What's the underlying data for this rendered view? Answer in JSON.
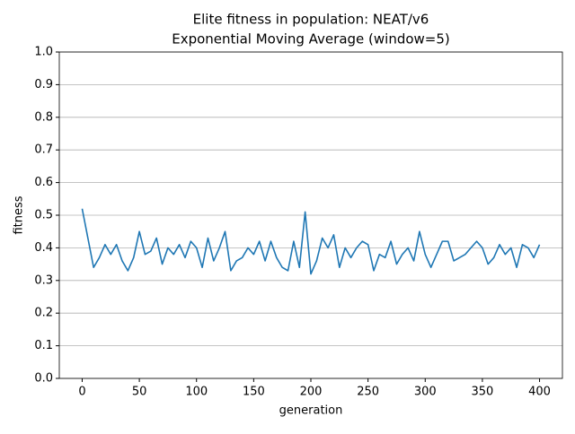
{
  "chart_data": {
    "type": "line",
    "title": "Elite fitness in population: NEAT/v6",
    "subtitle": "Exponential Moving Average (window=5)",
    "x_label": "generation",
    "y_label": "fitness",
    "x": [
      0,
      5,
      10,
      15,
      20,
      25,
      30,
      35,
      40,
      45,
      50,
      55,
      60,
      65,
      70,
      75,
      80,
      85,
      90,
      95,
      100,
      105,
      110,
      115,
      120,
      125,
      130,
      135,
      140,
      145,
      150,
      155,
      160,
      165,
      170,
      175,
      180,
      185,
      190,
      195,
      200,
      205,
      210,
      215,
      220,
      225,
      230,
      235,
      240,
      245,
      250,
      255,
      260,
      265,
      270,
      275,
      280,
      285,
      290,
      295,
      300,
      305,
      310,
      315,
      320,
      325,
      330,
      335,
      340,
      345,
      350,
      355,
      360,
      365,
      370,
      375,
      380,
      385,
      390,
      395,
      400
    ],
    "series": [
      {
        "color": "#1f77b4",
        "values": [
          0.52,
          0.43,
          0.34,
          0.37,
          0.41,
          0.38,
          0.41,
          0.36,
          0.33,
          0.37,
          0.45,
          0.38,
          0.39,
          0.43,
          0.35,
          0.4,
          0.38,
          0.41,
          0.37,
          0.42,
          0.4,
          0.34,
          0.43,
          0.36,
          0.4,
          0.45,
          0.33,
          0.36,
          0.37,
          0.4,
          0.38,
          0.42,
          0.36,
          0.42,
          0.37,
          0.34,
          0.33,
          0.42,
          0.34,
          0.51,
          0.32,
          0.36,
          0.43,
          0.4,
          0.44,
          0.34,
          0.4,
          0.37,
          0.4,
          0.42,
          0.41,
          0.33,
          0.38,
          0.37,
          0.42,
          0.35,
          0.38,
          0.4,
          0.36,
          0.45,
          0.38,
          0.34,
          0.38,
          0.42,
          0.42,
          0.36,
          0.37,
          0.38,
          0.4,
          0.42,
          0.4,
          0.35,
          0.37,
          0.41,
          0.38,
          0.4,
          0.34,
          0.41,
          0.4,
          0.37,
          0.41
        ]
      }
    ],
    "xlim": [
      -20,
      420
    ],
    "ylim": [
      0,
      1
    ],
    "xticks": [
      0,
      50,
      100,
      150,
      200,
      250,
      300,
      350,
      400
    ],
    "yticks": [
      {
        "value": 0,
        "label": "0.0"
      },
      0.1,
      0.2,
      0.3,
      0.4,
      0.5,
      0.6,
      0.7,
      0.8,
      0.9,
      {
        "value": 1,
        "label": "1.0"
      }
    ],
    "grid": "y"
  }
}
